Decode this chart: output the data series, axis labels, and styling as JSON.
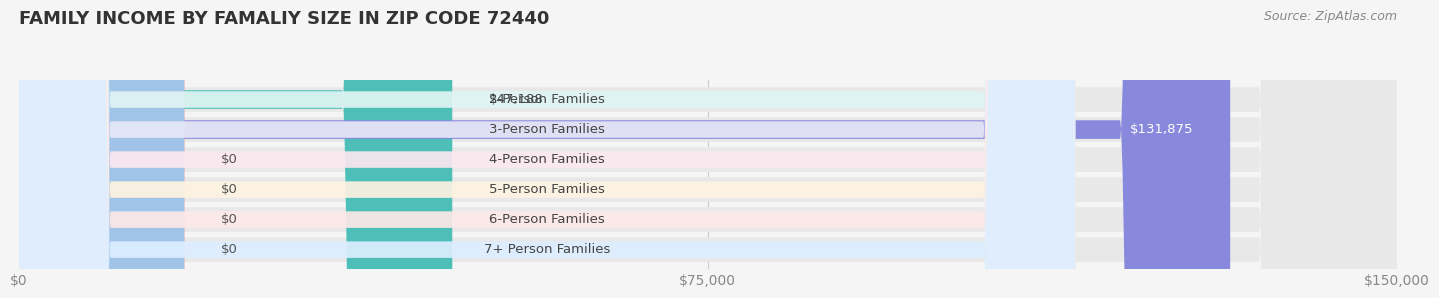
{
  "title": "FAMILY INCOME BY FAMALIY SIZE IN ZIP CODE 72440",
  "source": "Source: ZipAtlas.com",
  "categories": [
    "2-Person Families",
    "3-Person Families",
    "4-Person Families",
    "5-Person Families",
    "6-Person Families",
    "7+ Person Families"
  ],
  "values": [
    47188,
    131875,
    0,
    0,
    0,
    0
  ],
  "bar_colors": [
    "#4dbfb8",
    "#8888dd",
    "#f48cb0",
    "#f7c98a",
    "#f08080",
    "#a0c4e8"
  ],
  "label_bg_colors": [
    "#e0f5f4",
    "#e8e8f8",
    "#fce8f0",
    "#fef3e2",
    "#fde8e8",
    "#ddeeff"
  ],
  "value_labels": [
    "$47,188",
    "$131,875",
    "$0",
    "$0",
    "$0",
    "$0"
  ],
  "xlim": [
    0,
    150000
  ],
  "xtick_values": [
    0,
    75000,
    150000
  ],
  "xtick_labels": [
    "$0",
    "$75,000",
    "$150,000"
  ],
  "background_color": "#f5f5f5",
  "bar_bg_color": "#e8e8e8",
  "title_fontsize": 13,
  "tick_fontsize": 10,
  "label_fontsize": 9.5,
  "value_fontsize": 9.5,
  "source_fontsize": 9
}
